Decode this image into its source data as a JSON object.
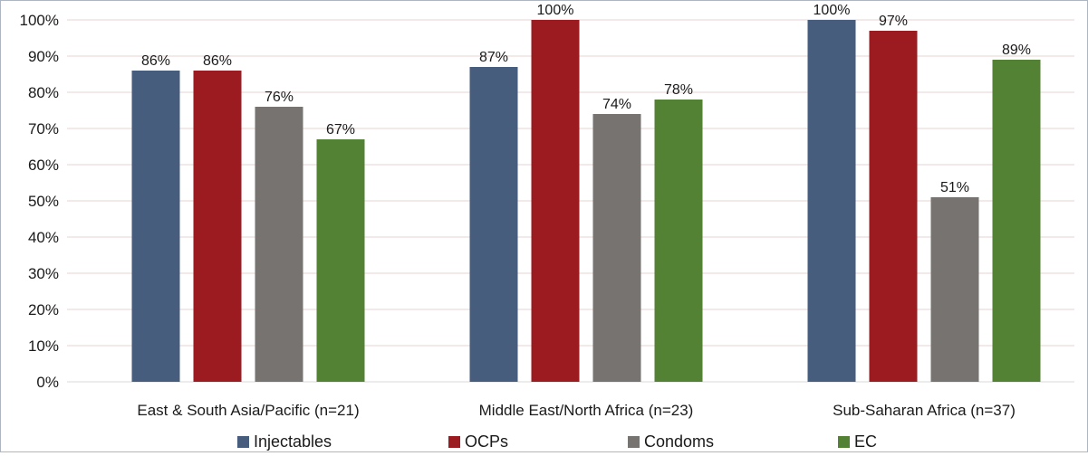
{
  "colors": {
    "Injectables": "#465d7e",
    "OCPs": "#9b1b20",
    "Condoms": "#777370",
    "EC": "#548235",
    "grid": "#e8d3d3",
    "axis": "#d9d9d9"
  },
  "chart_data": {
    "type": "bar",
    "title": "",
    "xlabel": "",
    "ylabel": "",
    "ylim": [
      0,
      100
    ],
    "y_ticks": [
      "0%",
      "10%",
      "20%",
      "30%",
      "40%",
      "50%",
      "60%",
      "70%",
      "80%",
      "90%",
      "100%"
    ],
    "grid": true,
    "legend_position": "bottom",
    "categories": [
      "East & South Asia/Pacific (n=21)",
      "Middle East/North Africa (n=23)",
      "Sub-Saharan Africa (n=37)"
    ],
    "series": [
      {
        "name": "Injectables",
        "values": [
          86,
          87,
          100
        ],
        "labels": [
          "86%",
          "87%",
          "100%"
        ]
      },
      {
        "name": "OCPs",
        "values": [
          86,
          100,
          97
        ],
        "labels": [
          "86%",
          "100%",
          "97%"
        ]
      },
      {
        "name": "Condoms",
        "values": [
          76,
          74,
          51
        ],
        "labels": [
          "76%",
          "74%",
          "51%"
        ]
      },
      {
        "name": "EC",
        "values": [
          67,
          78,
          89
        ],
        "labels": [
          "67%",
          "78%",
          "89%"
        ]
      }
    ]
  }
}
